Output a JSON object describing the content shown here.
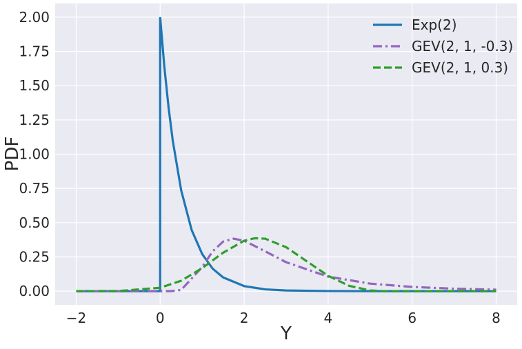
{
  "chart_data": {
    "type": "line",
    "xlabel": "Y",
    "ylabel": "PDF",
    "xlim": [
      -2.5,
      8.5
    ],
    "ylim": [
      -0.1,
      2.1
    ],
    "xticks": [
      {
        "value": -2,
        "label": "−2"
      },
      0,
      2,
      4,
      6,
      8
    ],
    "yticks": [
      {
        "value": 0,
        "label": "0.00"
      },
      {
        "value": 0.25,
        "label": "0.25"
      },
      {
        "value": 0.5,
        "label": "0.50"
      },
      {
        "value": 0.75,
        "label": "0.75"
      },
      {
        "value": 1,
        "label": "1.00"
      },
      {
        "value": 1.25,
        "label": "1.25"
      },
      {
        "value": 1.5,
        "label": "1.50"
      },
      {
        "value": 1.75,
        "label": "1.75"
      },
      {
        "value": 2,
        "label": "2.00"
      }
    ],
    "grid": true,
    "legend": "upper right",
    "series": [
      {
        "name": "Exp(2)",
        "color": "#1f77b4",
        "linestyle": "solid",
        "x": [
          -2,
          0,
          0,
          0.1,
          0.2,
          0.3,
          0.5,
          0.75,
          1,
          1.25,
          1.5,
          2,
          2.5,
          3,
          4,
          5,
          6,
          8
        ],
        "values": [
          0,
          0,
          2,
          1.637,
          1.341,
          1.098,
          0.736,
          0.446,
          0.271,
          0.164,
          0.1,
          0.037,
          0.013,
          0.005,
          0.001,
          0,
          0,
          0
        ]
      },
      {
        "name": "GEV(2, 1, -0.3)",
        "color": "#9467bd",
        "linestyle": "dashdot",
        "x": [
          -2,
          -1,
          0,
          0.25,
          0.5,
          1,
          1.25,
          1.5,
          1.75,
          2,
          2.5,
          3,
          4,
          5,
          6,
          7,
          8
        ],
        "values": [
          0,
          0,
          0,
          0,
          0.009,
          0.176,
          0.291,
          0.362,
          0.383,
          0.368,
          0.291,
          0.211,
          0.106,
          0.055,
          0.031,
          0.018,
          0.011
        ]
      },
      {
        "name": "GEV(2, 1, 0.3)",
        "color": "#2ca02c",
        "linestyle": "dashed",
        "x": [
          -2,
          -1,
          0,
          0.5,
          1,
          1.5,
          2,
          2.25,
          2.5,
          3,
          3.5,
          4,
          4.5,
          5,
          5.33,
          6,
          8
        ],
        "values": [
          0,
          0.001,
          0.025,
          0.076,
          0.168,
          0.281,
          0.368,
          0.386,
          0.383,
          0.321,
          0.216,
          0.112,
          0.039,
          0.005,
          0,
          0,
          0
        ]
      }
    ]
  }
}
